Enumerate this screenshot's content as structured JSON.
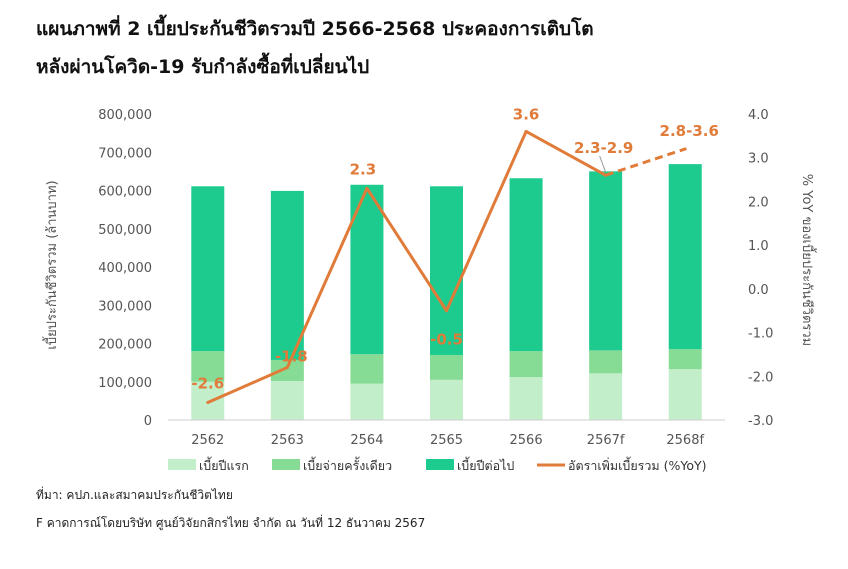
{
  "title_line1": "แผนภาพที่ 2 เบี้ยประกันชีวิตรวมปี 2566-2568 ประคองการเติบโต",
  "title_line2": "หลังผ่านโควิด-19 รับกำลังซื้อที่เปลี่ยนไป",
  "source_note": "ที่มา: คปภ.และสมาคมประกันชีวิตไทย",
  "forecast_note": "F คาดการณ์โดยบริษัท ศูนย์วิจัยกสิกรไทย จำกัด ณ วันที่ 12 ธันวาคม 2567",
  "colors": {
    "first_year": "#c2eec9",
    "single": "#86dc94",
    "renewal": "#1ecb8f",
    "growth": "#e07b39"
  },
  "chart_data": {
    "type": "bar",
    "stacked": true,
    "categories": [
      "2562",
      "2563",
      "2564",
      "2565",
      "2566",
      "2567f",
      "2568f"
    ],
    "ylabel": "เบี้ยประกันชีวิตรวม (ล้านบาท)",
    "y2label": "% YoY ของเบี้ยประกันชีวิตรวม",
    "ylim": [
      0,
      800000
    ],
    "yticks": [
      "0",
      "100,000",
      "200,000",
      "300,000",
      "400,000",
      "500,000",
      "600,000",
      "700,000",
      "800,000"
    ],
    "y2lim": [
      -3.0,
      4.0
    ],
    "y2ticks": [
      "-3.0",
      "-2.0",
      "-1.0",
      "0.0",
      "1.0",
      "2.0",
      "3.0",
      "4.0"
    ],
    "grid": false,
    "legend_position": "bottom",
    "series": [
      {
        "name": "เบี้ยปีแรก",
        "values": [
          100000,
          102000,
          95000,
          105000,
          112000,
          122000,
          133000
        ]
      },
      {
        "name": "เบี้ยจ่ายครั้งเดียว",
        "values": [
          80000,
          55000,
          77000,
          65000,
          68000,
          60000,
          52000
        ]
      },
      {
        "name": "เบี้ยปีต่อไป",
        "values": [
          431000,
          442000,
          443000,
          441000,
          452000,
          468000,
          484000
        ]
      }
    ],
    "line": {
      "name": "อัตราเพิ่มเบี้ยรวม (%YoY)",
      "values": [
        -2.6,
        -1.8,
        2.3,
        -0.5,
        3.6,
        2.6,
        3.2
      ],
      "dashed_from_index": 5,
      "labels": [
        "-2.6",
        "-1.8",
        "2.3",
        "-0.5",
        "3.6",
        "2.3-2.9",
        "2.8-3.6"
      ]
    }
  }
}
